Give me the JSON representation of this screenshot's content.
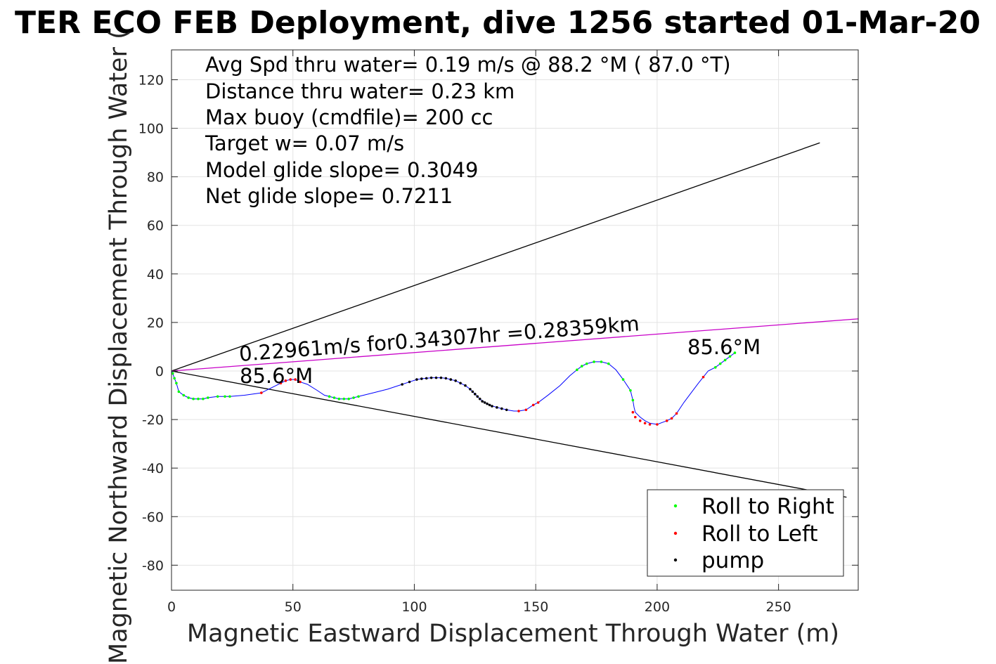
{
  "chart_data": {
    "type": "scatter",
    "title": "TER ECO FEB Deployment, dive 1256 started 01-Mar-20",
    "xlabel": "Magnetic Eastward Displacement Through Water (m)",
    "ylabel": "Magnetic Northward Displacement Through Water (",
    "xlim": [
      0,
      283
    ],
    "ylim": [
      -90,
      132
    ],
    "xticks": [
      0,
      50,
      100,
      150,
      200,
      250
    ],
    "yticks": [
      120,
      100,
      80,
      60,
      40,
      20,
      0,
      -20,
      -40,
      -60,
      -80
    ],
    "grid": true,
    "legend_position": "bottom-right",
    "annotations": [
      "Avg Spd thru water=  0.19 m/s @  88.2 °M ( 87.0 °T)",
      "Distance thru water=  0.23 km",
      "Max buoy (cmdfile)= 200 cc",
      "Target w= 0.07 m/s",
      "Model glide slope= 0.3049",
      "Net glide slope= 0.7211"
    ],
    "segment_label": "0.22961m/s for0.34307hr =0.28359km",
    "heading_labels": [
      "85.6°M",
      "85.6°M"
    ],
    "series": [
      {
        "name": "Roll to Right",
        "color": "#00ff00",
        "x": [
          0.5,
          1.2,
          2.0,
          3.0,
          5.0,
          7.0,
          9.0,
          11.0,
          13.0,
          15.0,
          19.0,
          22.0,
          24.0,
          65.0,
          67.0,
          69.0,
          71.0,
          73.0,
          75.0,
          77.0,
          167.0,
          169.0,
          171.0,
          174.0,
          177.0,
          180.0,
          186.0,
          189.0,
          190.0,
          224.0,
          226.0,
          228.0,
          230.0,
          232.0
        ],
        "y": [
          -1.0,
          -3.0,
          -5.0,
          -8.5,
          -10.0,
          -11.0,
          -11.5,
          -11.5,
          -11.5,
          -11.0,
          -10.5,
          -10.5,
          -10.5,
          -10.5,
          -11.0,
          -11.5,
          -11.5,
          -11.5,
          -11.0,
          -10.5,
          0.5,
          2.0,
          3.0,
          3.8,
          3.8,
          3.0,
          -3.5,
          -8.0,
          -12.0,
          1.5,
          3.0,
          4.5,
          6.0,
          7.5
        ]
      },
      {
        "name": "Roll to Left",
        "color": "#ff0000",
        "x": [
          37.0,
          45.0,
          47.0,
          49.0,
          51.0,
          53.0,
          143.0,
          146.0,
          149.0,
          151.0,
          190.0,
          191.0,
          193.0,
          195.0,
          197.0,
          200.0,
          204.0,
          206.0,
          208.0,
          219.0
        ],
        "y": [
          -9.0,
          -5.0,
          -4.0,
          -3.5,
          -3.5,
          -4.5,
          -16.5,
          -16.0,
          -14.0,
          -13.0,
          -17.0,
          -19.0,
          -20.5,
          -21.5,
          -22.0,
          -22.0,
          -20.5,
          -19.5,
          -17.5,
          -2.5
        ]
      },
      {
        "name": "pump",
        "color": "#000000",
        "x": [
          95.0,
          98.0,
          101.0,
          103.0,
          105.0,
          107.0,
          109.0,
          111.0,
          113.0,
          115.0,
          117.0,
          119.0,
          121.0,
          123.0,
          124.0,
          125.0,
          126.0,
          127.0,
          128.0,
          129.0,
          130.0,
          131.0,
          132.0,
          134.0,
          136.0,
          138.0
        ],
        "y": [
          -5.5,
          -4.5,
          -3.5,
          -3.2,
          -3.0,
          -2.8,
          -2.8,
          -2.8,
          -3.0,
          -3.5,
          -4.0,
          -5.0,
          -6.0,
          -7.5,
          -8.5,
          -9.5,
          -10.5,
          -11.5,
          -12.5,
          -13.0,
          -13.5,
          -14.0,
          -14.5,
          -15.0,
          -15.5,
          -16.0
        ]
      }
    ],
    "track": {
      "name": "track",
      "color": "#0000ff",
      "x": [
        0,
        0.5,
        1.2,
        2.0,
        3.0,
        5.0,
        7.0,
        9.0,
        11.0,
        13.0,
        15.0,
        19.0,
        24.0,
        30.0,
        37.0,
        41.0,
        45.0,
        47.0,
        49.0,
        51.0,
        53.0,
        56.0,
        60.0,
        63.0,
        65.0,
        67.0,
        69.0,
        71.0,
        73.0,
        75.0,
        77.0,
        83.0,
        89.0,
        95.0,
        98.0,
        101.0,
        103.0,
        105.0,
        107.0,
        109.0,
        111.0,
        113.0,
        115.0,
        117.0,
        119.0,
        121.0,
        123.0,
        125.0,
        127.0,
        129.0,
        131.0,
        134.0,
        136.0,
        138.0,
        141.0,
        143.0,
        146.0,
        149.0,
        151.0,
        155.0,
        160.0,
        164.0,
        167.0,
        169.0,
        171.0,
        174.0,
        177.0,
        180.0,
        183.0,
        186.0,
        188.0,
        189.0,
        190.0,
        190.5,
        191.0,
        193.0,
        195.0,
        197.0,
        200.0,
        204.0,
        206.0,
        208.0,
        211.0,
        214.0,
        217.0,
        219.0,
        221.0,
        224.0,
        226.0,
        228.0,
        230.0,
        232.0
      ],
      "y": [
        0,
        -1.0,
        -3.0,
        -5.0,
        -8.5,
        -10.0,
        -11.0,
        -11.5,
        -11.5,
        -11.5,
        -11.0,
        -10.5,
        -10.5,
        -10.0,
        -9.0,
        -7.0,
        -5.0,
        -4.0,
        -3.5,
        -3.5,
        -4.5,
        -5.5,
        -8.0,
        -10.0,
        -10.5,
        -11.0,
        -11.5,
        -11.5,
        -11.5,
        -11.0,
        -10.5,
        -9.0,
        -7.5,
        -5.5,
        -4.5,
        -3.5,
        -3.2,
        -3.0,
        -2.8,
        -2.8,
        -2.8,
        -3.0,
        -3.5,
        -4.0,
        -5.0,
        -6.0,
        -7.5,
        -9.5,
        -11.5,
        -13.0,
        -14.0,
        -15.0,
        -15.5,
        -16.0,
        -16.5,
        -16.5,
        -16.0,
        -14.0,
        -13.0,
        -10.0,
        -6.0,
        -2.0,
        0.5,
        2.0,
        3.0,
        3.8,
        3.8,
        3.0,
        0.5,
        -3.5,
        -6.5,
        -8.0,
        -12.0,
        -15.0,
        -17.0,
        -19.0,
        -20.5,
        -21.5,
        -22.0,
        -20.5,
        -19.5,
        -17.5,
        -13.0,
        -9.0,
        -5.0,
        -2.5,
        0.0,
        1.5,
        3.0,
        4.5,
        6.0,
        7.5
      ]
    },
    "reference_lines": [
      {
        "color": "#000000",
        "x": [
          0,
          267
        ],
        "y": [
          0,
          94.0
        ]
      },
      {
        "color": "#000000",
        "x": [
          0,
          278
        ],
        "y": [
          0,
          -52.0
        ]
      },
      {
        "color": "#c800c8",
        "x": [
          0,
          283
        ],
        "y": [
          0,
          21.5
        ]
      }
    ]
  }
}
